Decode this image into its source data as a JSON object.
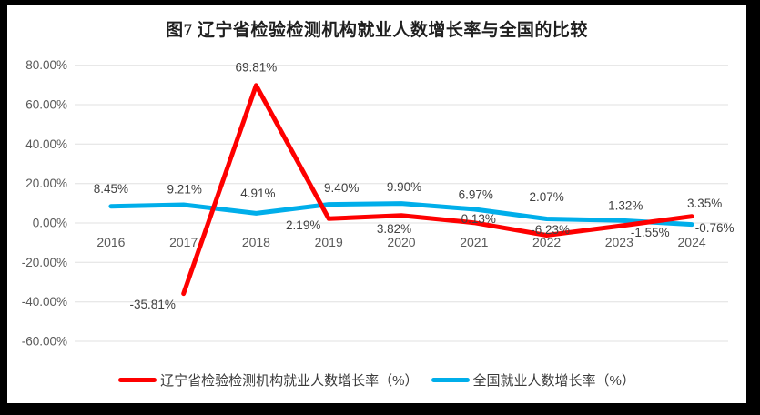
{
  "frame": {
    "border_color": "#000000",
    "canvas_color": "#ffffff"
  },
  "chart_data": {
    "type": "line",
    "title": "图7 辽宁省检验检测机构就业人数增长率与全国的比较",
    "categories": [
      "2016",
      "2017",
      "2018",
      "2019",
      "2020",
      "2021",
      "2022",
      "2023",
      "2024"
    ],
    "ylim": [
      -60,
      80
    ],
    "ytick_step": 20,
    "ytick_labels": [
      "80.00%",
      "60.00%",
      "40.00%",
      "20.00%",
      "0.00%",
      "-20.00%",
      "-40.00%",
      "-60.00%"
    ],
    "grid": true,
    "gridline_color": "#e0e0e0",
    "axis_label_color": "#595959",
    "data_label_color": "#404040",
    "legend_position": "bottom",
    "series": [
      {
        "name": "辽宁省检验检测机构就业人数增长率（%）",
        "color": "#fe0000",
        "values": [
          null,
          -35.81,
          69.81,
          2.19,
          3.82,
          0.13,
          -6.23,
          -1.55,
          3.35
        ],
        "labels": [
          "",
          "-35.81%",
          "69.81%",
          "2.19%",
          "3.82%",
          "0.13%",
          "-6.23%",
          "-1.55%",
          "3.35%"
        ],
        "label_offsets": [
          [
            0,
            0
          ],
          [
            -34,
            12
          ],
          [
            0,
            -20
          ],
          [
            -28,
            7
          ],
          [
            -8,
            15
          ],
          [
            5,
            -4
          ],
          [
            4,
            -6
          ],
          [
            34,
            7
          ],
          [
            14,
            -14
          ]
        ]
      },
      {
        "name": "全国就业人数增长率（%）",
        "color": "#00aeea",
        "values": [
          8.45,
          9.21,
          4.91,
          9.4,
          9.9,
          6.97,
          2.07,
          1.32,
          -0.76
        ],
        "labels": [
          "8.45%",
          "9.21%",
          "4.91%",
          "9.40%",
          "9.90%",
          "6.97%",
          "2.07%",
          "1.32%",
          "-0.76%"
        ],
        "label_offsets": [
          [
            0,
            -19
          ],
          [
            1,
            -17
          ],
          [
            2,
            -22
          ],
          [
            14,
            -18
          ],
          [
            3,
            -18
          ],
          [
            2,
            -16
          ],
          [
            0,
            -24
          ],
          [
            7,
            -16
          ],
          [
            25,
            4
          ]
        ]
      }
    ]
  }
}
